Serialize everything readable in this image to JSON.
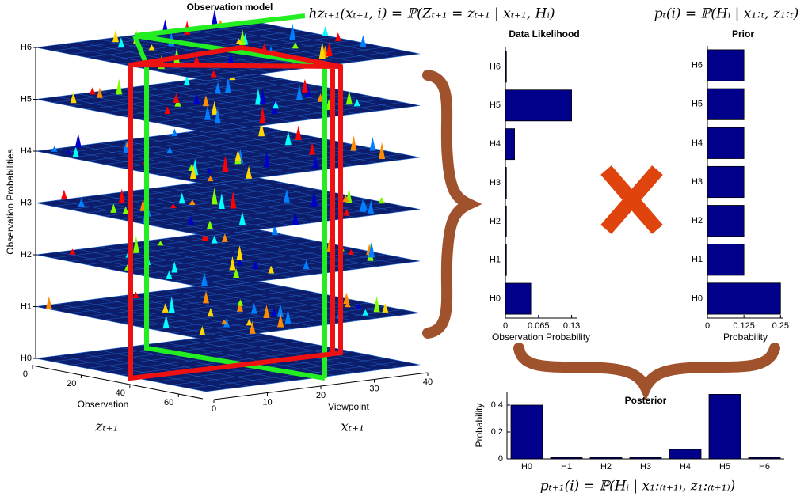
{
  "chart_data": [
    {
      "type": "surface3d",
      "title": "Observation model",
      "ylabel": "Observation Probabilities",
      "layers": [
        "H0",
        "H1",
        "H2",
        "H3",
        "H4",
        "H5",
        "H6"
      ],
      "xlabel": "Observation",
      "xlabel_symbol": "zₜ₊₁",
      "xlim": [
        0,
        70
      ],
      "xticks": [
        0,
        20,
        40,
        60
      ],
      "zlabel": "Viewpoint",
      "zlabel_symbol": "xₜ₊₁",
      "zlim": [
        0,
        40
      ],
      "zticks": [
        0,
        10,
        20,
        30,
        40
      ]
    },
    {
      "type": "barh",
      "title": "Data Likelihood",
      "formula": "hzₜ₊₁(xₜ₊₁, i) = ℙ(Zₜ₊₁ = zₜ₊₁ | xₜ₊₁, Hᵢ)",
      "categories": [
        "H0",
        "H1",
        "H2",
        "H3",
        "H4",
        "H5",
        "H6"
      ],
      "values": [
        0.05,
        0.002,
        0.002,
        0.002,
        0.018,
        0.13,
        0.002
      ],
      "color": "#00008b",
      "xlabel": "Observation Probability",
      "xlim": [
        0,
        0.14
      ],
      "xticks": [
        0,
        0.065,
        0.13
      ]
    },
    {
      "type": "barh",
      "title": "Prior",
      "formula": "pₜ(i) = ℙ(Hᵢ | x₁:ₜ, z₁:ₜ)",
      "categories": [
        "H0",
        "H1",
        "H2",
        "H3",
        "H4",
        "H5",
        "H6"
      ],
      "values": [
        0.25,
        0.125,
        0.125,
        0.125,
        0.125,
        0.125,
        0.125
      ],
      "color": "#00008b",
      "xlabel": "Probability",
      "xlim": [
        0,
        0.26
      ],
      "xticks": [
        0,
        0.125,
        0.25
      ]
    },
    {
      "type": "bar",
      "title": "Posterior",
      "formula": "pₜ₊₁(i) = ℙ(Hᵢ | x₁:₍ₜ₊₁₎, z₁:₍ₜ₊₁₎)",
      "categories": [
        "H0",
        "H1",
        "H2",
        "H3",
        "H4",
        "H5",
        "H6"
      ],
      "values": [
        0.4,
        0.01,
        0.01,
        0.01,
        0.07,
        0.48,
        0.01
      ],
      "color": "#00008b",
      "ylabel": "Probability",
      "ylim": [
        0,
        0.5
      ],
      "yticks": [
        0,
        0.2,
        0.4
      ]
    }
  ]
}
